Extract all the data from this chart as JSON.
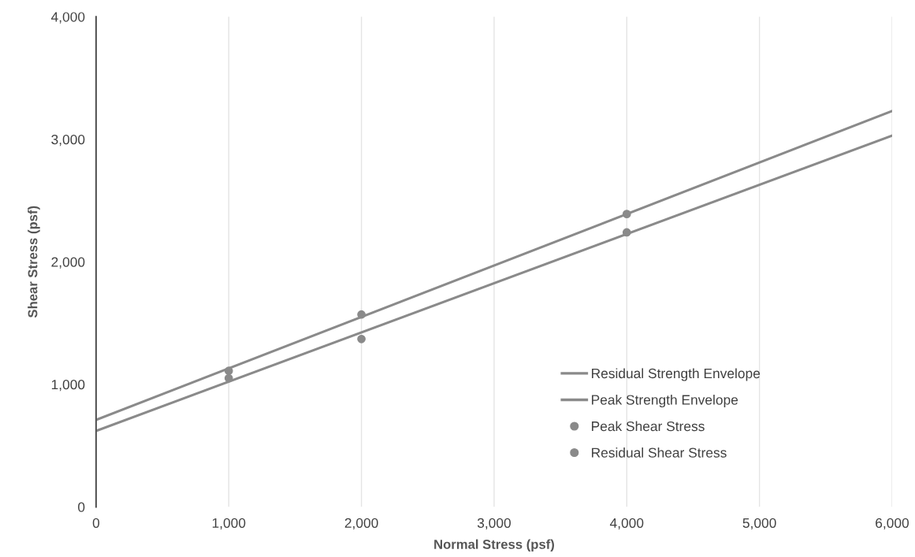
{
  "chart_data": {
    "type": "scatter",
    "xlabel": "Normal Stress (psf)",
    "ylabel": "Shear Stress (psf)",
    "xlim": [
      0,
      6000
    ],
    "ylim": [
      0,
      4000
    ],
    "xticks": [
      {
        "value": 0,
        "label": "0"
      },
      {
        "value": 1000,
        "label": "1,000"
      },
      {
        "value": 2000,
        "label": "2,000"
      },
      {
        "value": 3000,
        "label": "3,000"
      },
      {
        "value": 4000,
        "label": "4,000"
      },
      {
        "value": 5000,
        "label": "5,000"
      },
      {
        "value": 6000,
        "label": "6,000"
      }
    ],
    "yticks": [
      {
        "value": 0,
        "label": "0"
      },
      {
        "value": 1000,
        "label": "1,000"
      },
      {
        "value": 2000,
        "label": "2,000"
      },
      {
        "value": 3000,
        "label": "3,000"
      },
      {
        "value": 4000,
        "label": "4,000"
      }
    ],
    "grid": "x",
    "legend": "bottom right",
    "series": [
      {
        "name": "Residual Strength Envelope",
        "type": "line",
        "color": "#8a8a8a",
        "x": [
          0,
          6000
        ],
        "values": [
          620,
          3030
        ]
      },
      {
        "name": "Peak Strength Envelope",
        "type": "line",
        "color": "#8a8a8a",
        "x": [
          0,
          6000
        ],
        "values": [
          710,
          3230
        ]
      },
      {
        "name": "Peak Shear Stress",
        "color": "#8a8a8a",
        "x": [
          1000,
          2000,
          4000
        ],
        "values": [
          1110,
          1570,
          2390
        ]
      },
      {
        "name": "Residual Shear Stress",
        "color": "#8a8a8a",
        "x": [
          1000,
          2000,
          4000
        ],
        "values": [
          1050,
          1370,
          2240
        ]
      }
    ]
  }
}
